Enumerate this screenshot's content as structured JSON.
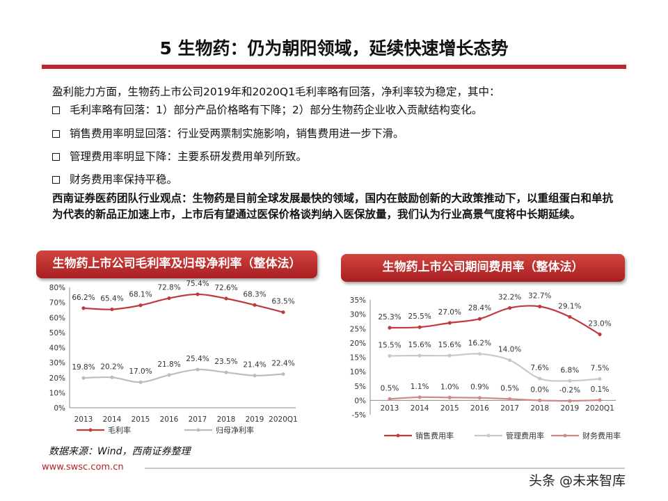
{
  "title": "5 生物药：仍为朝阳领域，延续快速增长态势",
  "intro": "盈利能力方面，生物药上市公司2019年和2020Q1毛利率略有回落，净利率较为稳定，其中：",
  "bullets": [
    "毛利率略有回落：1）部分产品价格略有下降；2）部分生物药企业收入贡献结构变化。",
    "销售费用率明显回落：行业受两票制实施影响，销售费用进一步下滑。",
    "管理费用率明显下降：主要系研发费用单列所致。",
    "财务费用率保持平稳。"
  ],
  "view": "西南证券医药团队行业观点：生物药是目前全球发展最快的领域，国内在鼓励创新的大政策推动下，以重组蛋白和单抗为代表的新品正加速上市，上市后有望通过医保价格谈判纳入医保放量，我们认为行业高景气度将中长期延续。",
  "source": "数据来源：Wind，西南证券整理",
  "url": "www.swsc.com.cn",
  "watermark": "头条 @未来智库",
  "chart_data": [
    {
      "type": "line",
      "title": "生物药上市公司毛利率及归母净利率（整体法）",
      "categories": [
        "2013",
        "2014",
        "2015",
        "2016",
        "2017",
        "2018",
        "2019",
        "2020Q1"
      ],
      "ylim": [
        0,
        80
      ],
      "yticks": [
        "0%",
        "10%",
        "20%",
        "30%",
        "40%",
        "50%",
        "60%",
        "70%",
        "80%"
      ],
      "legend": "bottom",
      "grid": false,
      "series": [
        {
          "name": "毛利率",
          "color": "#c0393b",
          "values": [
            66.2,
            65.4,
            68.1,
            72.8,
            75.4,
            72.6,
            68.3,
            63.5
          ],
          "labels": [
            "66.2%",
            "65.4%",
            "68.1%",
            "72.8%",
            "75.4%",
            "72.6%",
            "68.3%",
            "63.5%"
          ]
        },
        {
          "name": "归母净利率",
          "color": "#bdbdbd",
          "values": [
            19.8,
            20.2,
            17.0,
            21.8,
            25.4,
            23.5,
            21.4,
            22.4
          ],
          "labels": [
            "19.8%",
            "20.2%",
            "17.0%",
            "21.8%",
            "25.4%",
            "23.5%",
            "21.4%",
            "22.4%"
          ]
        }
      ]
    },
    {
      "type": "line",
      "title": "生物药上市公司期间费用率（整体法）",
      "categories": [
        "2013",
        "2014",
        "2015",
        "2016",
        "2017",
        "2018",
        "2019",
        "2020Q1"
      ],
      "ylim": [
        -5,
        35
      ],
      "yticks": [
        "-5%",
        "0%",
        "5%",
        "10%",
        "15%",
        "20%",
        "25%",
        "30%",
        "35%"
      ],
      "legend": "bottom",
      "grid": false,
      "series": [
        {
          "name": "销售费用率",
          "color": "#c0393b",
          "values": [
            25.3,
            25.5,
            27.0,
            28.4,
            32.2,
            32.7,
            29.1,
            23.0
          ],
          "labels": [
            "25.3%",
            "25.5%",
            "27.0%",
            "28.4%",
            "32.2%",
            "32.7%",
            "29.1%",
            "23.0%"
          ]
        },
        {
          "name": "管理费用率",
          "color": "#c8c8c8",
          "values": [
            15.5,
            15.6,
            15.6,
            16.2,
            14.0,
            7.6,
            6.8,
            7.5
          ],
          "labels": [
            "15.5%",
            "15.6%",
            "15.6%",
            "16.2%",
            "14.0%",
            "7.6%",
            "6.8%",
            "7.5%"
          ]
        },
        {
          "name": "财务费用率",
          "color": "#d08a86",
          "values": [
            0.5,
            1.1,
            1.0,
            0.9,
            0.5,
            0.0,
            -0.2,
            0.1
          ],
          "labels": [
            "0.5%",
            "1.1%",
            "1.0%",
            "0.9%",
            "0.5%",
            "0.0%",
            "-0.2%",
            "0.1%"
          ]
        }
      ]
    }
  ]
}
